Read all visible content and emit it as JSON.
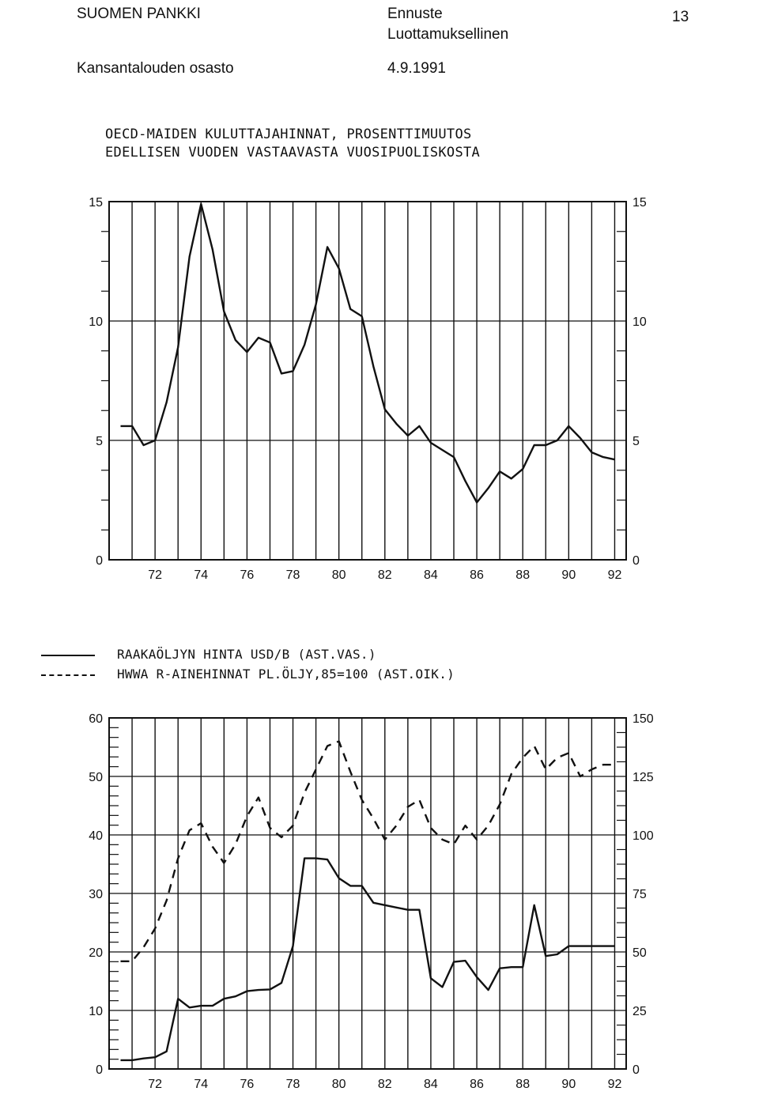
{
  "header": {
    "org": "SUOMEN PANKKI",
    "doc_type": "Ennuste",
    "classification": "Luottamuksellinen",
    "page_number": "13",
    "department": "Kansantalouden osasto",
    "date": "4.9.1991"
  },
  "chart1_title": {
    "line1": "OECD-MAIDEN KULUTTAJAHINNAT, PROSENTTIMUUTOS",
    "line2": "EDELLISEN VUODEN VASTAAVASTA VUOSIPUOLISKOSTA"
  },
  "legend": {
    "solid_label": "RAAKAÖLJYN HINTA USD/B (AST.VAS.)",
    "dashed_label": "HWWA R-AINEHINNAT PL.ÖLJY,85=100 (AST.OIK.)"
  },
  "chart_data": [
    {
      "type": "line",
      "title": "OECD-MAIDEN KULUTTAJAHINNAT, PROSENTTIMUUTOS EDELLISEN VUODEN VASTAAVASTA VUOSIPUOLISKOSTA",
      "xlim": [
        1970,
        1992.5
      ],
      "ylim": [
        0,
        15
      ],
      "x_tick_labels": [
        "72",
        "74",
        "76",
        "78",
        "80",
        "82",
        "84",
        "86",
        "88",
        "90",
        "92"
      ],
      "y_tick_labels_left": [
        "0",
        "5",
        "10",
        "15"
      ],
      "y_tick_labels_right": [
        "0",
        "5",
        "10",
        "15"
      ],
      "grid": "vertical lines at each year",
      "series": [
        {
          "x": [
            1970.5,
            1971.0,
            1971.5,
            1972.0,
            1972.5,
            1973.0,
            1973.5,
            1974.0,
            1974.5,
            1975.0,
            1975.5,
            1976.0,
            1976.5,
            1977.0,
            1977.5,
            1978.0,
            1978.5,
            1979.0,
            1979.5,
            1980.0,
            1980.5,
            1981.0,
            1981.5,
            1982.0,
            1982.5,
            1983.0,
            1983.5,
            1984.0,
            1984.5,
            1985.0,
            1985.5,
            1986.0,
            1986.5,
            1987.0,
            1987.5,
            1988.0,
            1988.5,
            1989.0,
            1989.5,
            1990.0,
            1990.5,
            1991.0,
            1991.5,
            1992.0
          ],
          "y": [
            5.6,
            5.6,
            4.8,
            5.0,
            6.6,
            8.9,
            12.7,
            14.9,
            13.0,
            10.4,
            9.2,
            8.7,
            9.3,
            9.1,
            7.8,
            7.9,
            9.0,
            10.7,
            13.1,
            12.2,
            10.5,
            10.2,
            8.1,
            6.3,
            5.7,
            5.2,
            5.6,
            4.9,
            4.6,
            4.3,
            3.3,
            2.4,
            3.0,
            3.7,
            3.4,
            3.8,
            4.8,
            4.8,
            5.0,
            5.6,
            5.1,
            4.5,
            4.3,
            4.2
          ]
        }
      ]
    },
    {
      "type": "line",
      "xlim": [
        1970,
        1992.5
      ],
      "ylim": [
        0,
        60
      ],
      "y2lim": [
        0,
        150
      ],
      "x_tick_labels": [
        "72",
        "74",
        "76",
        "78",
        "80",
        "82",
        "84",
        "86",
        "88",
        "90",
        "92"
      ],
      "y_tick_labels_left": [
        "0",
        "10",
        "20",
        "30",
        "40",
        "50",
        "60"
      ],
      "y_tick_labels_right": [
        "0",
        "25",
        "50",
        "75",
        "100",
        "125",
        "150"
      ],
      "grid": "vertical lines at each year",
      "series": [
        {
          "style": "solid",
          "axis": "left",
          "x": [
            1970.5,
            1971.0,
            1971.5,
            1972.0,
            1972.5,
            1973.0,
            1973.5,
            1974.0,
            1974.5,
            1975.0,
            1975.5,
            1976.0,
            1976.5,
            1977.0,
            1977.5,
            1978.0,
            1978.5,
            1979.0,
            1979.5,
            1980.0,
            1980.5,
            1981.0,
            1981.5,
            1982.0,
            1982.5,
            1983.0,
            1983.5,
            1984.0,
            1984.5,
            1985.0,
            1985.5,
            1986.0,
            1986.5,
            1987.0,
            1987.5,
            1988.0,
            1988.5,
            1989.0,
            1989.5,
            1990.0,
            1990.5,
            1991.0,
            1991.5,
            1992.0
          ],
          "y": [
            1.5,
            1.5,
            1.8,
            2.0,
            3.0,
            12.0,
            10.5,
            10.8,
            10.8,
            12.0,
            12.4,
            13.3,
            13.5,
            13.6,
            14.7,
            21.0,
            36.0,
            36.0,
            35.8,
            32.6,
            31.3,
            31.3,
            28.4,
            28.0,
            27.6,
            27.2,
            27.2,
            15.5,
            14.0,
            18.3,
            18.5,
            15.7,
            13.5,
            17.2,
            17.4,
            17.4,
            28.0,
            19.3,
            19.6,
            21.0,
            21.0,
            21.0,
            21.0,
            21.0
          ]
        },
        {
          "style": "dashed",
          "axis": "right",
          "x": [
            1970.5,
            1971.0,
            1971.5,
            1972.0,
            1972.5,
            1973.0,
            1973.5,
            1974.0,
            1974.5,
            1975.0,
            1975.5,
            1976.0,
            1976.5,
            1977.0,
            1977.5,
            1978.0,
            1978.5,
            1979.0,
            1979.5,
            1980.0,
            1980.5,
            1981.0,
            1981.5,
            1982.0,
            1982.5,
            1983.0,
            1983.5,
            1984.0,
            1984.5,
            1985.0,
            1985.5,
            1986.0,
            1986.5,
            1987.0,
            1987.5,
            1988.0,
            1988.5,
            1989.0,
            1989.5,
            1990.0,
            1990.5,
            1991.0,
            1991.5,
            1992.0
          ],
          "y": [
            46,
            46,
            52,
            60,
            72,
            90,
            102,
            105,
            95,
            88,
            96,
            108,
            116,
            103,
            99,
            104,
            118,
            128,
            138,
            140,
            127,
            115,
            107,
            98,
            104,
            112,
            115,
            103,
            98,
            96,
            104,
            98,
            104,
            113,
            126,
            133,
            138,
            128,
            133,
            135,
            125,
            128,
            130,
            130
          ]
        }
      ]
    }
  ]
}
